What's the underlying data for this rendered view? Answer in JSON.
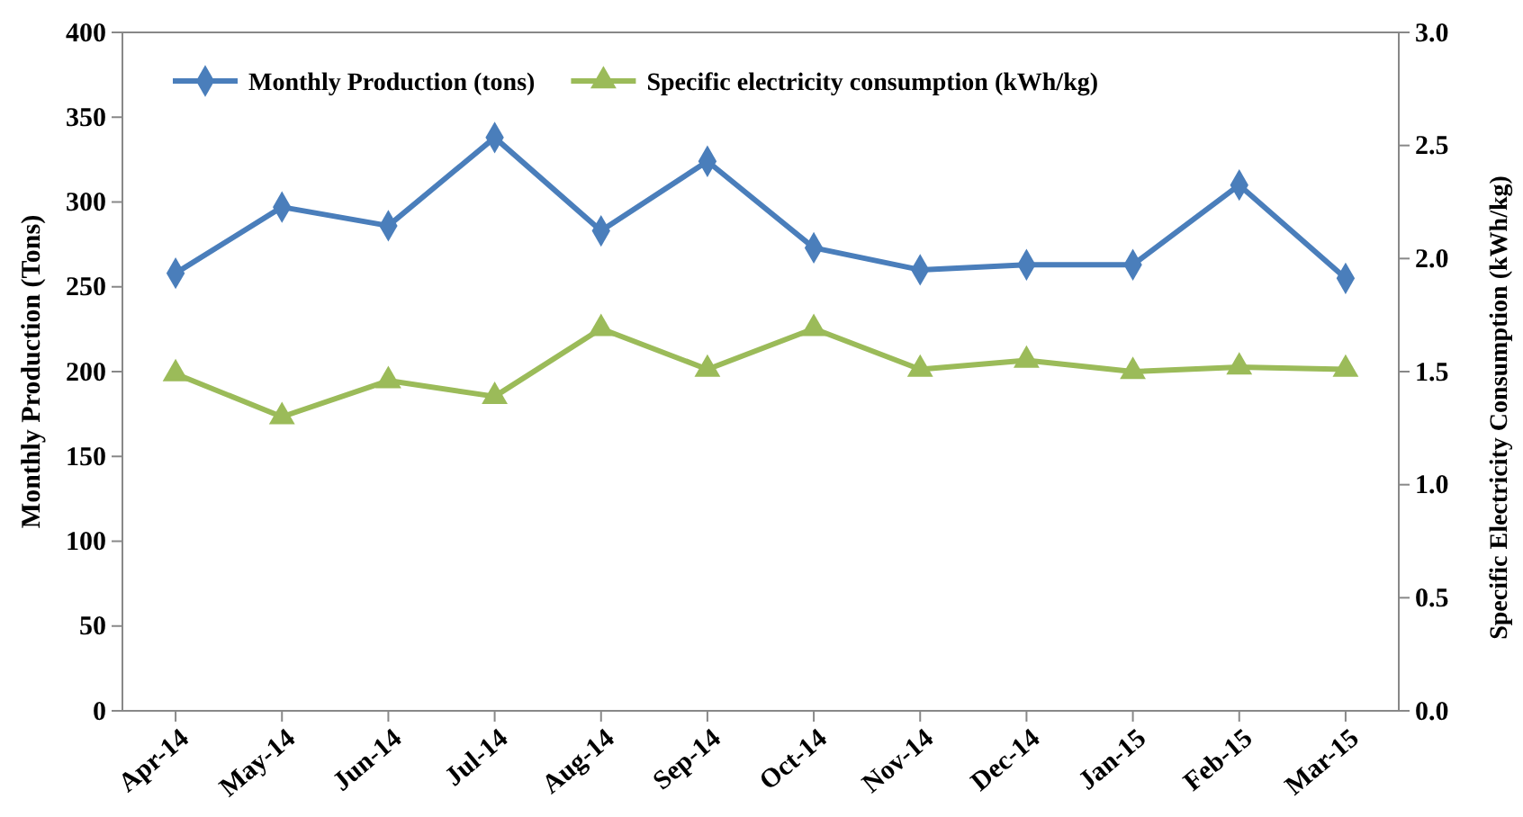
{
  "chart_data": {
    "type": "line",
    "xlabel": null,
    "ylabel": "Monthly Production (Tons)",
    "y2label": "Specific Electricity Consumption (kWh/kg)",
    "categories": [
      "Apr-14",
      "May-14",
      "Jun-14",
      "Jul-14",
      "Aug-14",
      "Sep-14",
      "Oct-14",
      "Nov-14",
      "Dec-14",
      "Jan-15",
      "Feb-15",
      "Mar-15"
    ],
    "series": [
      {
        "name": "Monthly Production (tons)",
        "color": "#4a7ebb",
        "marker": "diamond",
        "values": [
          258,
          297,
          286,
          338,
          283,
          324,
          273,
          260,
          263,
          263,
          310,
          255
        ]
      },
      {
        "name": "Specific electricity consumption (kWh/kg)",
        "color": "#9bbb59",
        "marker": "triangle",
        "axis": "y2",
        "values": [
          1.49,
          1.3,
          1.46,
          1.39,
          1.69,
          1.51,
          1.69,
          1.51,
          1.55,
          1.5,
          1.52,
          1.51
        ]
      }
    ],
    "ylim": [
      0,
      400
    ],
    "yticks": [
      0,
      50,
      100,
      150,
      200,
      250,
      300,
      350,
      400
    ],
    "y2lim": [
      0,
      3
    ],
    "y2ticks": [
      {
        "value": 0,
        "label": "0.0"
      },
      {
        "value": 0.5,
        "label": "0.5"
      },
      {
        "value": 1,
        "label": "1.0"
      },
      {
        "value": 1.5,
        "label": "1.5"
      },
      {
        "value": 2,
        "label": "2.0"
      },
      {
        "value": 2.5,
        "label": "2.5"
      },
      {
        "value": 3,
        "label": "3.0"
      }
    ],
    "legend": "top left",
    "grid": false
  }
}
